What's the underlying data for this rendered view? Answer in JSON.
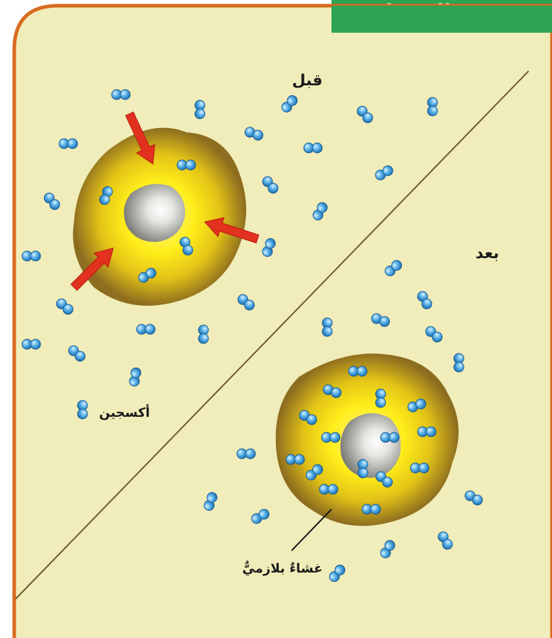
{
  "header": {
    "tab_title": "الانتشار"
  },
  "labels": {
    "before": "قبل",
    "after": "بعد",
    "oxygen": "أكسجين",
    "membrane": "غشاءٌ بلازميٌّ"
  },
  "colors": {
    "background": "#f1edba",
    "border": "#d86a1e",
    "tab": "#2ba353",
    "cell_outer": "#8d6d1f",
    "cell_inner": "#ffee1a",
    "nucleus": "#9a9a96",
    "arrow": "#e2311f",
    "oxygen": "#2f8fd4",
    "divider": "#6e5a2f"
  },
  "icons": {
    "molecule": "oxygen-molecule-icon",
    "arrow": "inward-arrow-icon"
  }
}
